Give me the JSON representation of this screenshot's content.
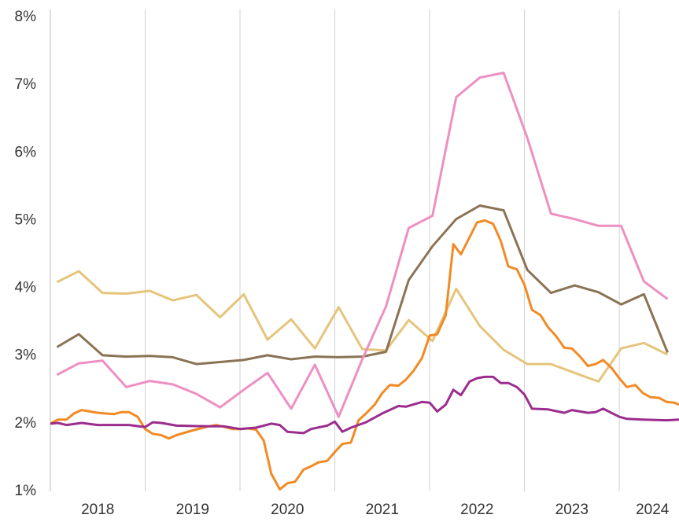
{
  "chart_data": {
    "type": "line",
    "xlim": [
      2018,
      2024.63
    ],
    "ylim": [
      1,
      8
    ],
    "xticks": [
      {
        "value": 2018.5,
        "label": "2018"
      },
      {
        "value": 2019.5,
        "label": "2019"
      },
      {
        "value": 2020.5,
        "label": "2020"
      },
      {
        "value": 2021.5,
        "label": "2021"
      },
      {
        "value": 2022.5,
        "label": "2022"
      },
      {
        "value": 2023.5,
        "label": "2023"
      },
      {
        "value": 2024.35,
        "label": "2024"
      }
    ],
    "xgrid": [
      2019,
      2020,
      2021,
      2022,
      2023,
      2024
    ],
    "yticks": [
      {
        "value": 1,
        "label": "1%"
      },
      {
        "value": 2,
        "label": "2%"
      },
      {
        "value": 3,
        "label": "3%"
      },
      {
        "value": 4,
        "label": "4%"
      },
      {
        "value": 5,
        "label": "5%"
      },
      {
        "value": 6,
        "label": "6%"
      },
      {
        "value": 7,
        "label": "7%"
      },
      {
        "value": 8,
        "label": "8%"
      }
    ],
    "grid": true,
    "series": [
      {
        "color": "#e5c47c",
        "x": [
          2018.07,
          2018.3,
          2018.55,
          2018.8,
          2019.05,
          2019.29,
          2019.54,
          2019.79,
          2020.04,
          2020.29,
          2020.54,
          2020.79,
          2021.04,
          2021.29,
          2021.54,
          2021.78,
          2022.03,
          2022.28,
          2022.53,
          2022.78,
          2023.03,
          2023.28,
          2023.53,
          2023.78,
          2024.02,
          2024.26,
          2024.51
        ],
        "values": [
          4.09,
          4.25,
          3.93,
          3.92,
          3.96,
          3.82,
          3.9,
          3.57,
          3.91,
          3.24,
          3.54,
          3.11,
          3.72,
          3.1,
          3.08,
          3.53,
          3.22,
          3.99,
          3.44,
          3.09,
          2.88,
          2.88,
          2.75,
          2.62,
          3.11,
          3.19,
          3.02
        ]
      },
      {
        "color": "#8b7355",
        "x": [
          2018.07,
          2018.3,
          2018.55,
          2018.8,
          2019.05,
          2019.29,
          2019.54,
          2019.79,
          2020.04,
          2020.29,
          2020.54,
          2020.79,
          2021.04,
          2021.29,
          2021.54,
          2021.78,
          2022.03,
          2022.28,
          2022.53,
          2022.78,
          2023.03,
          2023.28,
          2023.53,
          2023.78,
          2024.02,
          2024.26,
          2024.51
        ],
        "values": [
          3.13,
          3.32,
          3.01,
          2.99,
          3.0,
          2.98,
          2.88,
          2.91,
          2.94,
          3.01,
          2.95,
          2.99,
          2.98,
          2.99,
          3.06,
          4.12,
          4.62,
          5.02,
          5.22,
          5.15,
          4.27,
          3.93,
          4.04,
          3.94,
          3.76,
          3.91,
          3.05
        ]
      },
      {
        "color": "#ee8fc2",
        "x": [
          2018.07,
          2018.3,
          2018.55,
          2018.8,
          2019.05,
          2019.29,
          2019.54,
          2019.79,
          2020.04,
          2020.29,
          2020.54,
          2020.79,
          2021.04,
          2021.29,
          2021.54,
          2021.78,
          2022.03,
          2022.28,
          2022.53,
          2022.78,
          2023.03,
          2023.28,
          2023.53,
          2023.78,
          2024.02,
          2024.26,
          2024.51
        ],
        "values": [
          2.72,
          2.89,
          2.93,
          2.54,
          2.63,
          2.58,
          2.44,
          2.24,
          2.5,
          2.75,
          2.22,
          2.87,
          2.1,
          2.95,
          3.73,
          4.89,
          5.07,
          6.82,
          7.11,
          7.18,
          6.22,
          5.1,
          5.02,
          4.92,
          4.92,
          4.1,
          3.84
        ]
      },
      {
        "color": "#f28a24",
        "x": [
          2018.0,
          2018.08,
          2018.17,
          2018.25,
          2018.33,
          2018.5,
          2018.67,
          2018.75,
          2018.83,
          2018.92,
          2019.0,
          2019.08,
          2019.17,
          2019.25,
          2019.33,
          2019.5,
          2019.67,
          2019.75,
          2019.92,
          2020.0,
          2020.08,
          2020.17,
          2020.25,
          2020.33,
          2020.42,
          2020.5,
          2020.58,
          2020.67,
          2020.75,
          2020.83,
          2020.92,
          2021.0,
          2021.08,
          2021.17,
          2021.25,
          2021.33,
          2021.42,
          2021.5,
          2021.58,
          2021.67,
          2021.75,
          2021.83,
          2021.92,
          2022.0,
          2022.08,
          2022.17,
          2022.25,
          2022.33,
          2022.42,
          2022.5,
          2022.58,
          2022.67,
          2022.75,
          2022.83,
          2022.92,
          2023.0,
          2023.08,
          2023.17,
          2023.25,
          2023.33,
          2023.42,
          2023.5,
          2023.58,
          2023.67,
          2023.75,
          2023.83,
          2023.92,
          2024.0,
          2024.08,
          2024.17,
          2024.25,
          2024.33,
          2024.42,
          2024.5,
          2024.58,
          2024.63
        ],
        "values": [
          2.0,
          2.06,
          2.06,
          2.15,
          2.2,
          2.16,
          2.14,
          2.17,
          2.17,
          2.1,
          1.92,
          1.85,
          1.83,
          1.78,
          1.83,
          1.9,
          1.96,
          1.98,
          1.92,
          1.92,
          1.93,
          1.91,
          1.75,
          1.26,
          1.03,
          1.12,
          1.14,
          1.32,
          1.37,
          1.43,
          1.45,
          1.58,
          1.7,
          1.72,
          2.05,
          2.15,
          2.28,
          2.45,
          2.57,
          2.56,
          2.65,
          2.78,
          2.97,
          3.3,
          3.32,
          3.6,
          4.65,
          4.5,
          4.75,
          4.97,
          5.0,
          4.95,
          4.7,
          4.32,
          4.28,
          4.05,
          3.68,
          3.6,
          3.42,
          3.3,
          3.12,
          3.11,
          3.0,
          2.85,
          2.88,
          2.94,
          2.82,
          2.67,
          2.54,
          2.57,
          2.45,
          2.39,
          2.38,
          2.32,
          2.31,
          2.28
        ]
      },
      {
        "color": "#9b2d8e",
        "x": [
          2018.0,
          2018.08,
          2018.17,
          2018.33,
          2018.5,
          2018.83,
          2019.0,
          2019.08,
          2019.17,
          2019.33,
          2019.67,
          2019.83,
          2020.0,
          2020.17,
          2020.33,
          2020.42,
          2020.5,
          2020.67,
          2020.75,
          2020.92,
          2021.0,
          2021.08,
          2021.17,
          2021.33,
          2021.5,
          2021.67,
          2021.75,
          2021.92,
          2022.0,
          2022.08,
          2022.17,
          2022.25,
          2022.33,
          2022.42,
          2022.5,
          2022.58,
          2022.67,
          2022.75,
          2022.83,
          2022.92,
          2023.0,
          2023.08,
          2023.25,
          2023.42,
          2023.5,
          2023.67,
          2023.75,
          2023.83,
          2024.0,
          2024.08,
          2024.25,
          2024.5,
          2024.63
        ],
        "values": [
          2.0,
          2.01,
          1.98,
          2.01,
          1.98,
          1.98,
          1.95,
          2.02,
          2.01,
          1.97,
          1.96,
          1.96,
          1.92,
          1.94,
          2.0,
          1.98,
          1.88,
          1.86,
          1.92,
          1.97,
          2.03,
          1.88,
          1.94,
          2.02,
          2.15,
          2.26,
          2.25,
          2.32,
          2.31,
          2.18,
          2.28,
          2.5,
          2.42,
          2.62,
          2.67,
          2.69,
          2.69,
          2.6,
          2.6,
          2.54,
          2.43,
          2.22,
          2.21,
          2.16,
          2.2,
          2.16,
          2.17,
          2.22,
          2.1,
          2.07,
          2.06,
          2.05,
          2.06
        ]
      }
    ]
  }
}
